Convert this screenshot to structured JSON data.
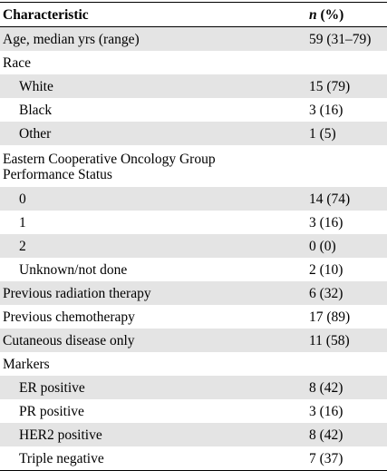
{
  "header": {
    "characteristic": "Characteristic",
    "n": "n",
    "pct": " (%)"
  },
  "rows": [
    {
      "label": "Age, median yrs (range)",
      "value": "59 (31–79)"
    },
    {
      "label": "Race",
      "value": ""
    },
    {
      "label": "White",
      "value": "15 (79)"
    },
    {
      "label": "Black",
      "value": "3 (16)"
    },
    {
      "label": "Other",
      "value": "1 (5)"
    },
    {
      "label": "Eastern Cooperative Oncology Group Performance Status",
      "value": ""
    },
    {
      "label": "0",
      "value": "14 (74)"
    },
    {
      "label": "1",
      "value": "3 (16)"
    },
    {
      "label": "2",
      "value": "0 (0)"
    },
    {
      "label": "Unknown/not done",
      "value": "2 (10)"
    },
    {
      "label": "Previous radiation therapy",
      "value": "6 (32)"
    },
    {
      "label": "Previous chemotherapy",
      "value": "17 (89)"
    },
    {
      "label": "Cutaneous disease only",
      "value": "11 (58)"
    },
    {
      "label": "Markers",
      "value": ""
    },
    {
      "label": "ER positive",
      "value": "8 (42)"
    },
    {
      "label": "PR positive",
      "value": "3 (16)"
    },
    {
      "label": "HER2 positive",
      "value": "8 (42)"
    },
    {
      "label": "Triple negative",
      "value": "7 (37)"
    }
  ]
}
